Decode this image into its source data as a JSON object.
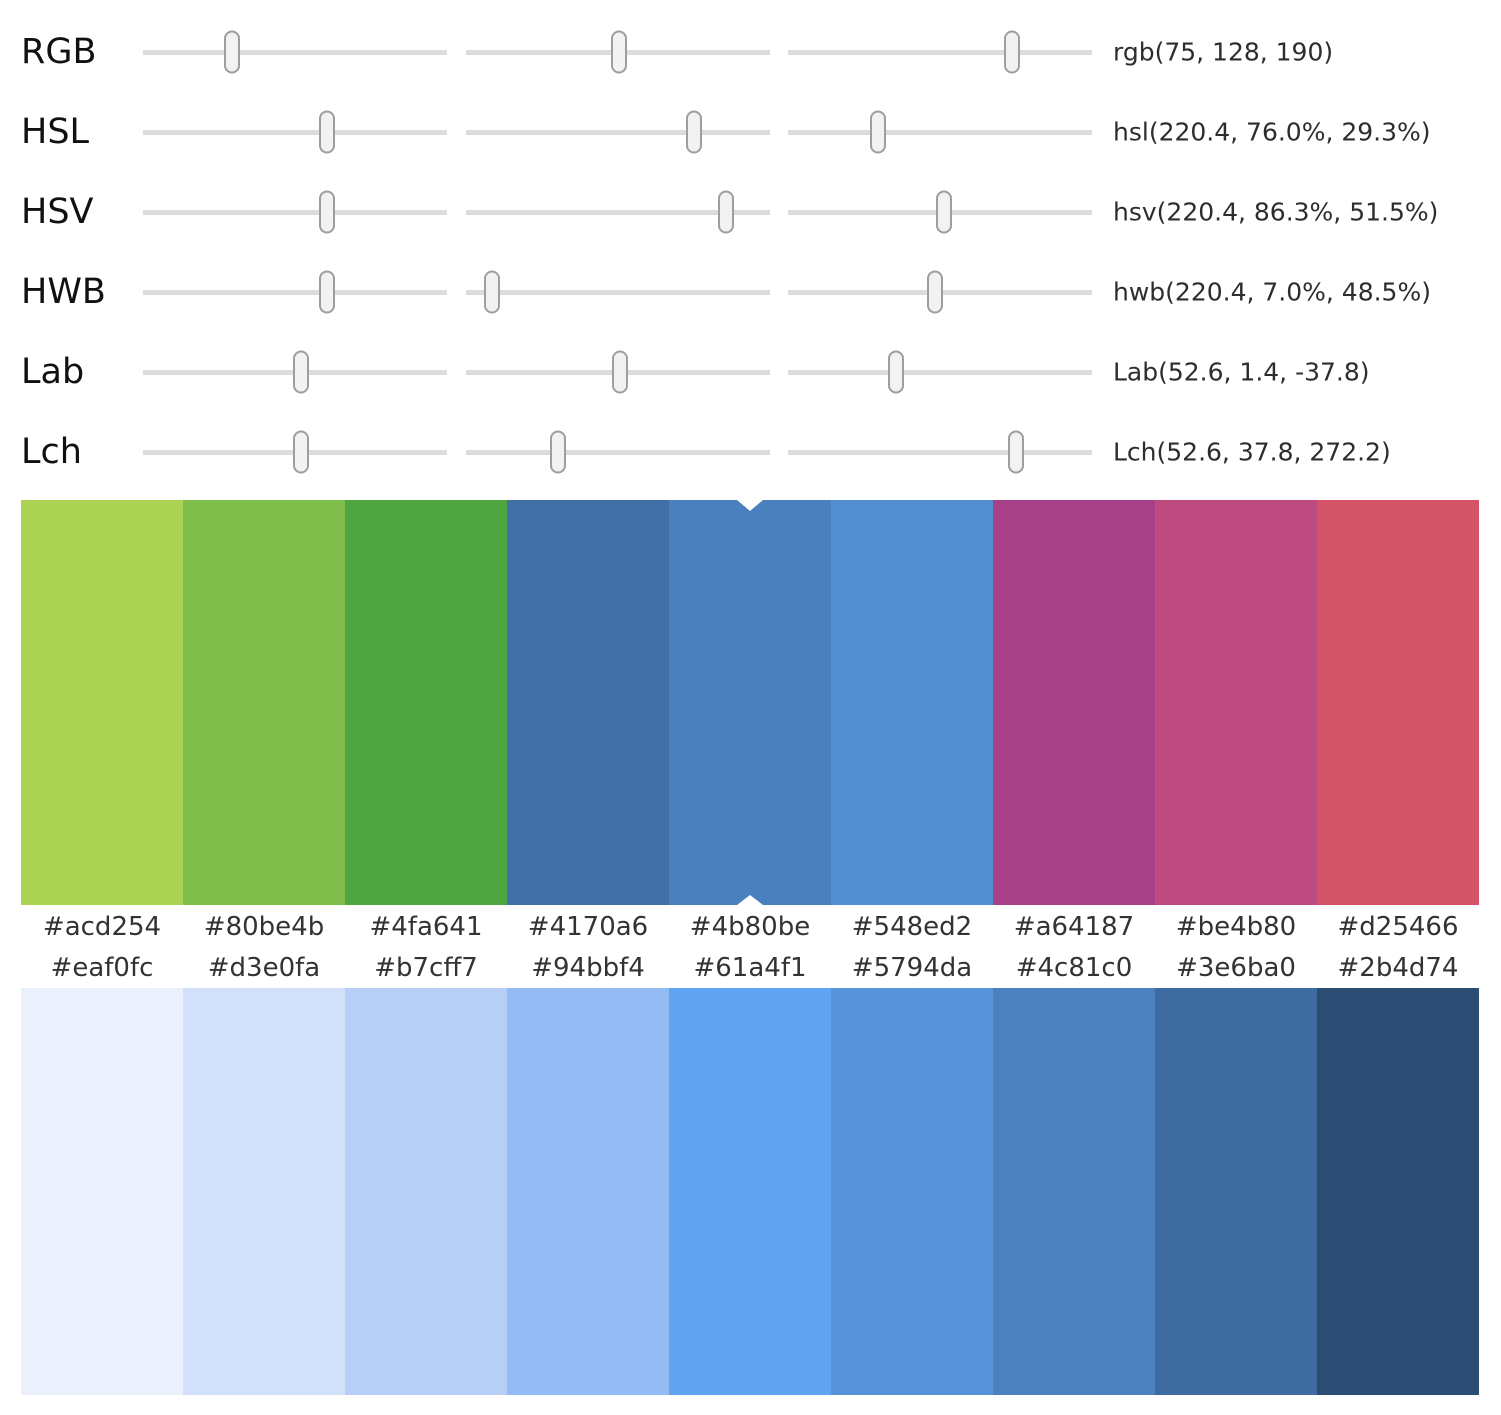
{
  "sliders": {
    "rows": [
      {
        "id": "rgb",
        "label": "RGB",
        "value": "rgb(75, 128, 190)",
        "handles": [
          29.3,
          50.3,
          73.7
        ]
      },
      {
        "id": "hsl",
        "label": "HSL",
        "value": "hsl(220.4, 76.0%, 29.3%)",
        "handles": [
          60.5,
          75.0,
          29.6
        ]
      },
      {
        "id": "hsv",
        "label": "HSV",
        "value": "hsv(220.4, 86.3%, 51.5%)",
        "handles": [
          60.5,
          85.5,
          51.3
        ]
      },
      {
        "id": "hwb",
        "label": "HWB",
        "value": "hwb(220.4, 7.0%, 48.5%)",
        "handles": [
          60.5,
          8.5,
          48.4
        ]
      },
      {
        "id": "lab",
        "label": "Lab",
        "value": "Lab(52.6, 1.4, -37.8)",
        "handles": [
          52.0,
          50.7,
          35.5
        ]
      },
      {
        "id": "lch",
        "label": "Lch",
        "value": "Lch(52.6, 37.8, 272.2)",
        "handles": [
          52.0,
          30.3,
          75.0
        ]
      }
    ]
  },
  "top_palette": {
    "selected_index": 4,
    "swatches": [
      "#acd254",
      "#80be4b",
      "#4fa641",
      "#4170a6",
      "#4b80be",
      "#548ed2",
      "#a64187",
      "#be4b80",
      "#d25466"
    ]
  },
  "bottom_palette": {
    "swatches": [
      "#eaf0fc",
      "#d3e0fa",
      "#b7cff7",
      "#94bbf4",
      "#61a4f1",
      "#5794da",
      "#4c81c0",
      "#3e6ba0",
      "#2b4d74"
    ]
  },
  "colors": {
    "track": "#dcdcdc",
    "handle_fill": "#f2f2f2",
    "handle_border": "#9e9e9e",
    "notch": "#ffffff"
  }
}
